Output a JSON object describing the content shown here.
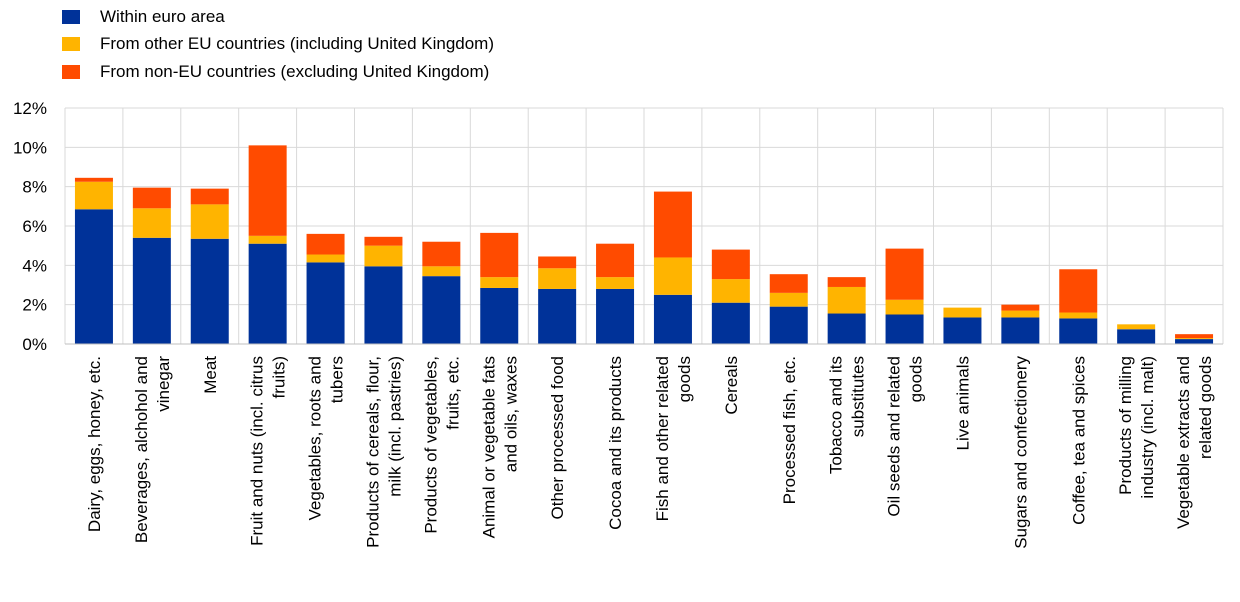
{
  "chart_data": {
    "type": "bar",
    "stacked": true,
    "categories": [
      [
        "Dairy, eggs, honey, etc."
      ],
      [
        "Beverages, alchohol and",
        "vinegar"
      ],
      [
        "Meat"
      ],
      [
        "Fruit and nuts (incl. citrus",
        "fruits)"
      ],
      [
        "Vegetables, roots and",
        "tubers"
      ],
      [
        "Products of cereals, flour,",
        "milk (incl. pastries)"
      ],
      [
        "Products of vegetables,",
        "fruits, etc."
      ],
      [
        "Animal or vegetable fats",
        "and oils, waxes"
      ],
      [
        "Other processed food"
      ],
      [
        "Cocoa and its products"
      ],
      [
        "Fish and other related",
        "goods"
      ],
      [
        "Cereals"
      ],
      [
        "Processed fish, etc."
      ],
      [
        "Tobacco and its",
        "substitutes"
      ],
      [
        "Oil seeds and related",
        "goods"
      ],
      [
        "Live animals"
      ],
      [
        "Sugars and confectionery"
      ],
      [
        "Coffee, tea and spices"
      ],
      [
        "Products of milling",
        "industry (incl. malt)"
      ],
      [
        "Vegetable extracts and",
        "related goods"
      ]
    ],
    "series": [
      {
        "name": "Within euro area",
        "color": "#003299",
        "values": [
          6.85,
          5.4,
          5.35,
          5.1,
          4.15,
          3.95,
          3.45,
          2.85,
          2.8,
          2.8,
          2.5,
          2.1,
          1.9,
          1.55,
          1.5,
          1.35,
          1.35,
          1.3,
          0.75,
          0.25
        ]
      },
      {
        "name": "From other EU countries (including United Kingdom)",
        "color": "#FFB400",
        "values": [
          1.4,
          1.5,
          1.75,
          0.4,
          0.4,
          1.05,
          0.5,
          0.55,
          1.05,
          0.6,
          1.9,
          1.2,
          0.7,
          1.35,
          0.75,
          0.5,
          0.35,
          0.3,
          0.25,
          0.05
        ]
      },
      {
        "name": "From non-EU countries (excluding United Kingdom)",
        "color": "#FF4B00",
        "values": [
          0.2,
          1.05,
          0.8,
          4.6,
          1.05,
          0.45,
          1.25,
          2.25,
          0.6,
          1.7,
          3.35,
          1.5,
          0.95,
          0.5,
          2.6,
          0.0,
          0.3,
          2.2,
          0.0,
          0.2
        ]
      }
    ],
    "ylim": [
      0,
      12
    ],
    "yticks": [
      0,
      2,
      4,
      6,
      8,
      10,
      12
    ],
    "ytick_suffix": "%",
    "grid": true,
    "legend_position": "top-left"
  }
}
